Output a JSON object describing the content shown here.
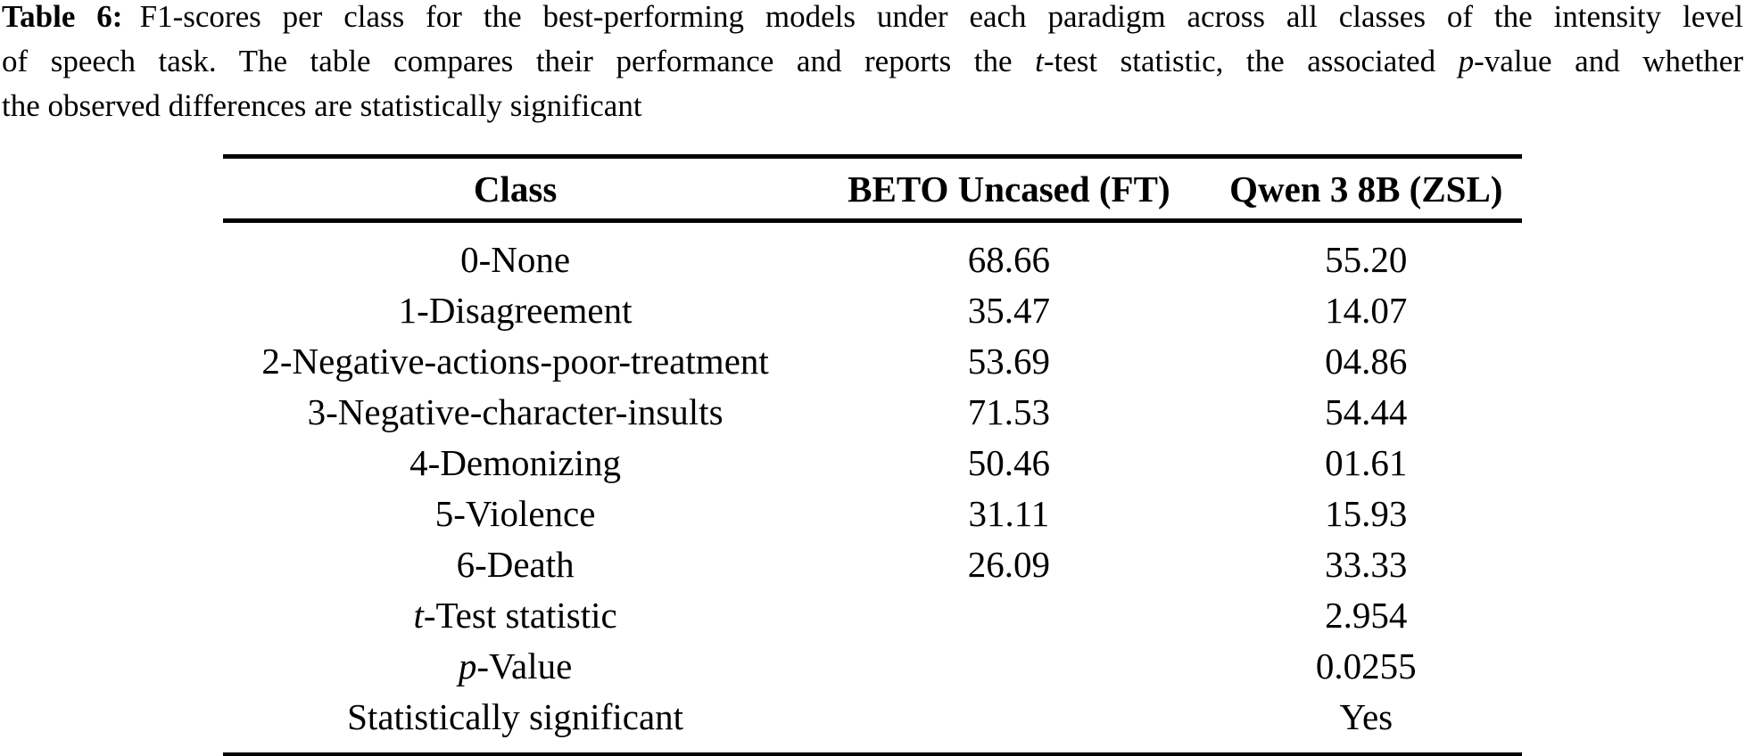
{
  "page": {
    "background_color": "#ffffff",
    "text_color": "#000000"
  },
  "caption": {
    "label": "Table 6:",
    "line1_rest": "F1-scores per class for the best-performing models under each paradigm across all classes of the intensity level",
    "line2_seg1": "of speech task. The table compares their performance and reports the ",
    "line2_italic1": "t",
    "line2_seg2": "-test statistic, the associated ",
    "line2_italic2": "p",
    "line2_seg3": "-value and whether",
    "line3": "the observed differences are statistically significant"
  },
  "table": {
    "headers": [
      "Class",
      "BETO Uncased (FT)",
      "Qwen 3 8B (ZSL)"
    ],
    "rows": [
      {
        "label_prefix_italic": "",
        "label": "0-None",
        "beto": "68.66",
        "qwen": "55.20"
      },
      {
        "label_prefix_italic": "",
        "label": "1-Disagreement",
        "beto": "35.47",
        "qwen": "14.07"
      },
      {
        "label_prefix_italic": "",
        "label": "2-Negative-actions-poor-treatment",
        "beto": "53.69",
        "qwen": "04.86"
      },
      {
        "label_prefix_italic": "",
        "label": "3-Negative-character-insults",
        "beto": "71.53",
        "qwen": "54.44"
      },
      {
        "label_prefix_italic": "",
        "label": "4-Demonizing",
        "beto": "50.46",
        "qwen": "01.61"
      },
      {
        "label_prefix_italic": "",
        "label": "5-Violence",
        "beto": "31.11",
        "qwen": "15.93"
      },
      {
        "label_prefix_italic": "",
        "label": "6-Death",
        "beto": "26.09",
        "qwen": "33.33"
      },
      {
        "label_prefix_italic": "t",
        "label": "-Test statistic",
        "beto": "",
        "qwen": "2.954"
      },
      {
        "label_prefix_italic": "p",
        "label": "-Value",
        "beto": "",
        "qwen": "0.0255"
      },
      {
        "label_prefix_italic": "",
        "label": "Statistically significant",
        "beto": "",
        "qwen": "Yes"
      }
    ]
  }
}
